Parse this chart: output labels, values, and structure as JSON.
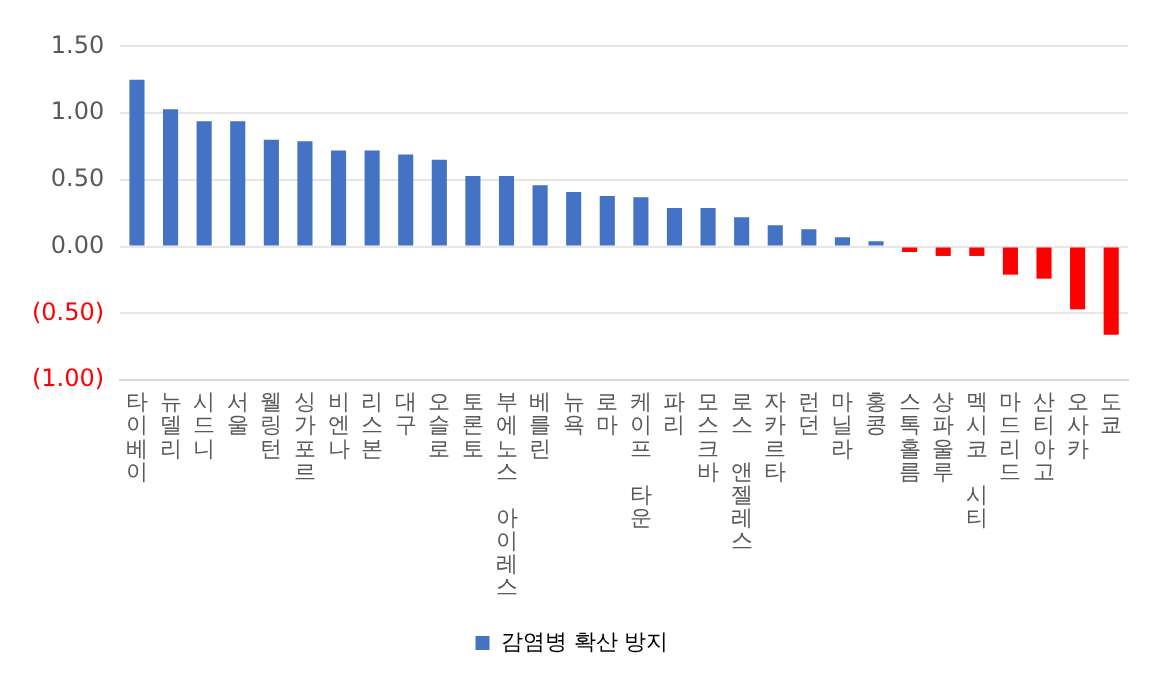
{
  "chart_data": {
    "type": "bar",
    "categories": [
      "타이베이",
      "뉴델리",
      "시드니",
      "서울",
      "웰링턴",
      "싱가포르",
      "비엔나",
      "리스본",
      "대구",
      "오슬로",
      "토론토",
      "부에노스 아이레스",
      "베를린",
      "뉴욕",
      "로마",
      "케이프 타운",
      "파리",
      "모스크바",
      "로스 앤젤레스",
      "자카르타",
      "런던",
      "마닐라",
      "홍콩",
      "스톡홀름",
      "상파울루",
      "멕시코 시티",
      "마드리드",
      "산티아고",
      "오사카",
      "도쿄"
    ],
    "series": [
      {
        "name": "감염병 확산 방지",
        "color": "#4472c4",
        "values": [
          1.25,
          1.03,
          0.94,
          0.94,
          0.8,
          0.79,
          0.72,
          0.72,
          0.69,
          0.65,
          0.53,
          0.53,
          0.46,
          0.41,
          0.38,
          0.37,
          0.29,
          0.29,
          0.22,
          0.16,
          0.13,
          0.07,
          0.04,
          -0.04,
          -0.07,
          -0.07,
          -0.21,
          -0.24,
          -0.47,
          -0.66
        ],
        "colors": [
          "#4472c4",
          "#4472c4",
          "#4472c4",
          "#4472c4",
          "#4472c4",
          "#4472c4",
          "#4472c4",
          "#4472c4",
          "#4472c4",
          "#4472c4",
          "#4472c4",
          "#4472c4",
          "#4472c4",
          "#4472c4",
          "#4472c4",
          "#4472c4",
          "#4472c4",
          "#4472c4",
          "#4472c4",
          "#4472c4",
          "#4472c4",
          "#4472c4",
          "#4472c4",
          "#ff0000",
          "#ff0000",
          "#ff0000",
          "#ff0000",
          "#ff0000",
          "#ff0000",
          "#ff0000"
        ]
      }
    ],
    "ylim": [
      -1,
      1.5
    ],
    "yticks": [
      {
        "value": -1,
        "label": "(1.00)"
      },
      {
        "value": -0.5,
        "label": "(0.50)"
      },
      {
        "value": 0,
        "label": "0.00"
      },
      {
        "value": 0.5,
        "label": "0.50"
      },
      {
        "value": 1,
        "label": "1.00"
      },
      {
        "value": 1.5,
        "label": "1.50"
      }
    ],
    "grid": "y",
    "legend": "bottom"
  }
}
